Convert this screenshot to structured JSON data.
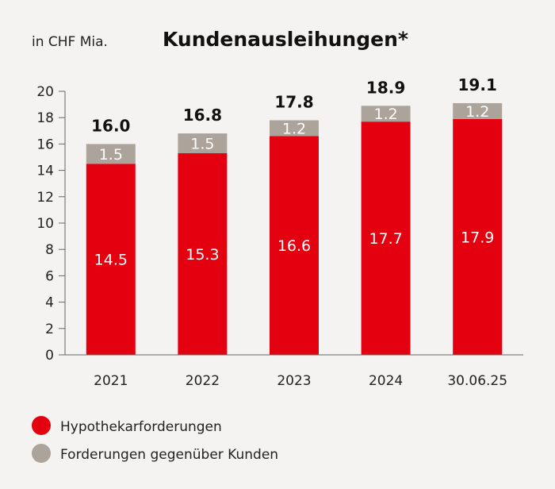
{
  "unit_label": "in CHF Mia.",
  "colors": {
    "hypothek": "#e3000f",
    "forderungen": "#aca39a",
    "background": "#f4f3f1"
  },
  "chart_data": {
    "type": "bar",
    "stacked": true,
    "title": "Kundenausleihungen*",
    "xlabel": "",
    "ylabel": "",
    "ylim": [
      0,
      20
    ],
    "yticks": [
      0,
      2,
      4,
      6,
      8,
      10,
      12,
      14,
      16,
      18,
      20
    ],
    "grid": false,
    "legend_position": "bottom-left",
    "categories": [
      "2021",
      "2022",
      "2023",
      "2024",
      "30.06.25"
    ],
    "totals": [
      "16.0",
      "16.8",
      "17.8",
      "18.9",
      "19.1"
    ],
    "series": [
      {
        "name": "Hypothekarforderungen",
        "color": "#e3000f",
        "values": [
          14.5,
          15.3,
          16.6,
          17.7,
          17.9
        ],
        "labels": [
          "14.5",
          "15.3",
          "16.6",
          "17.7",
          "17.9"
        ]
      },
      {
        "name": "Forderungen gegenüber Kunden",
        "color": "#aca39a",
        "values": [
          1.5,
          1.5,
          1.2,
          1.2,
          1.2
        ],
        "labels": [
          "1.5",
          "1.5",
          "1.2",
          "1.2",
          "1.2"
        ]
      }
    ]
  }
}
